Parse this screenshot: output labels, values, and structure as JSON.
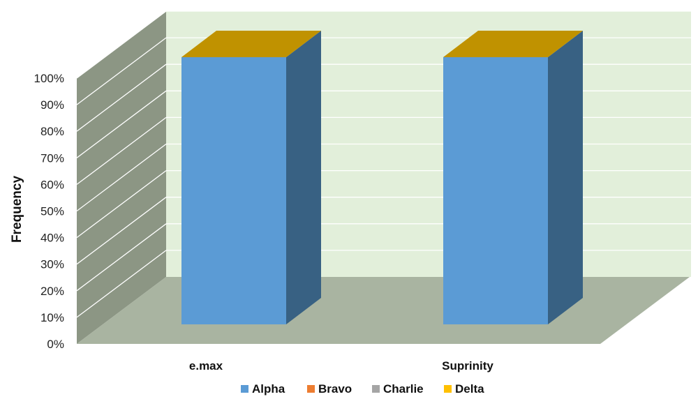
{
  "chart_data": {
    "type": "bar",
    "stacked": true,
    "three_d": true,
    "percent_stacked": true,
    "categories": [
      "e.max",
      "Suprinity"
    ],
    "series": [
      {
        "name": "Alpha",
        "values": [
          100,
          100
        ],
        "color": "#5b9bd5"
      },
      {
        "name": "Bravo",
        "values": [
          0,
          0
        ],
        "color": "#ed7d31"
      },
      {
        "name": "Charlie",
        "values": [
          0,
          0
        ],
        "color": "#a5a5a5"
      },
      {
        "name": "Delta",
        "values": [
          0,
          0
        ],
        "color": "#ffc000"
      }
    ],
    "ylabel": "Frequency",
    "xlabel": "",
    "ylim": [
      0,
      100
    ],
    "yticks": [
      "0%",
      "10%",
      "20%",
      "30%",
      "40%",
      "50%",
      "60%",
      "70%",
      "80%",
      "90%",
      "100%"
    ],
    "grid": true,
    "legend": "bottom",
    "colors": {
      "back_wall": "#e2efda",
      "side_wall": "#8c9684",
      "floor": "#a9b4a1",
      "gridline": "#ffffff",
      "bar_side": "#386183",
      "bar_top": "#c09200"
    }
  }
}
